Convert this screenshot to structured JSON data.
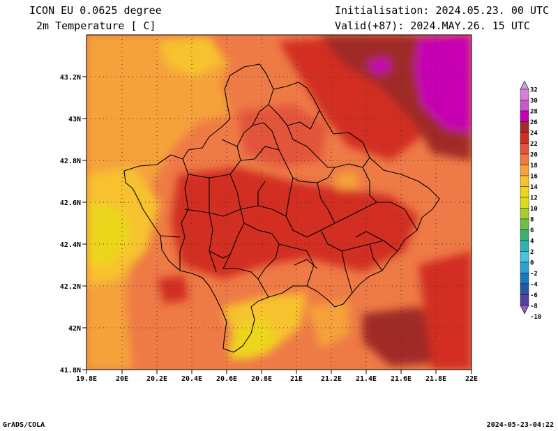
{
  "header": {
    "model": "ICON EU 0.0625 degree",
    "variable": "2m Temperature [ C]",
    "init": "Initialisation: 2024.05.23. 00 UTC",
    "valid": "Valid(+87): 2024.MAY.26. 15 UTC"
  },
  "map": {
    "lon_ticks": [
      "19.8E",
      "20E",
      "20.2E",
      "20.4E",
      "20.6E",
      "20.8E",
      "21E",
      "21.2E",
      "21.4E",
      "21.6E",
      "21.8E",
      "22E"
    ],
    "lat_ticks": [
      "43.2N",
      "43N",
      "42.8N",
      "42.6N",
      "42.4N",
      "42.2N",
      "42N",
      "41.8N"
    ],
    "lon_range": [
      19.8,
      22.0
    ],
    "lat_range": [
      41.8,
      43.4
    ],
    "grid": "dotted"
  },
  "colorbar": {
    "levels": [
      "32",
      "30",
      "28",
      "26",
      "24",
      "22",
      "20",
      "18",
      "16",
      "14",
      "12",
      "10",
      "8",
      "6",
      "4",
      "2",
      "0",
      "-2",
      "-4",
      "-6",
      "-8",
      "-10"
    ],
    "colors": [
      "#c79fe3",
      "#d67ed8",
      "#c85ac9",
      "#c800b4",
      "#a02c28",
      "#d22d23",
      "#e2553a",
      "#ee7a46",
      "#f5a23a",
      "#f7c22e",
      "#ecd61e",
      "#d8dc1c",
      "#a6cc33",
      "#6ebe48",
      "#3fae75",
      "#2fb4b0",
      "#4ec1dc",
      "#2ea0d2",
      "#1c78bc",
      "#2a58a6",
      "#5444a0",
      "#8a64bc"
    ]
  },
  "footer": {
    "left": "GrADS/COLA",
    "right": "2024-05-23-04:22"
  }
}
